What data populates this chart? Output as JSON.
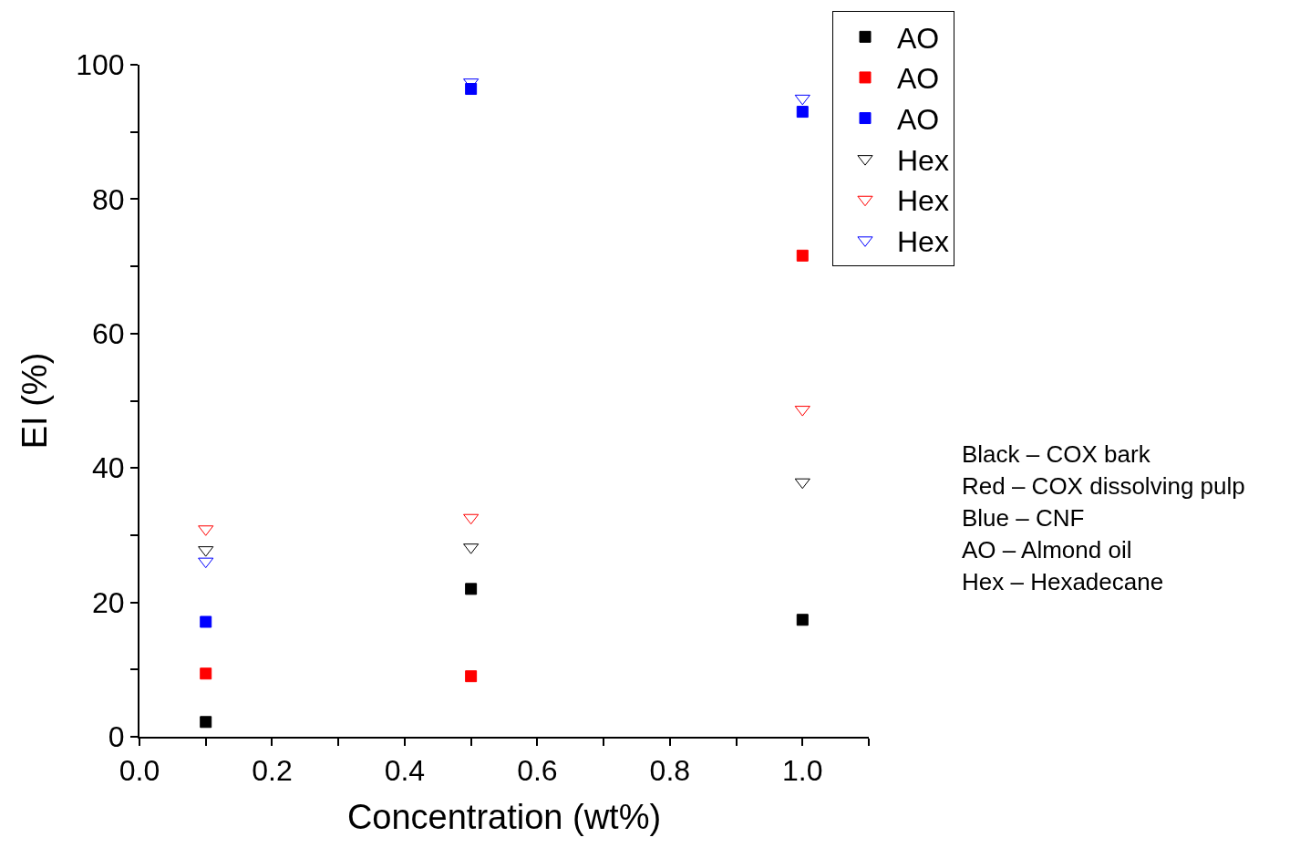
{
  "chart_data": {
    "type": "scatter",
    "xlabel": "Concentration (wt%)",
    "ylabel": "EI (%)",
    "x": [
      0.1,
      0.5,
      1.0
    ],
    "series": [
      {
        "name": "AO",
        "color": "#000000",
        "marker": "square",
        "values": [
          2.2,
          22.0,
          17.4
        ]
      },
      {
        "name": "AO",
        "color": "#ff0000",
        "marker": "square",
        "values": [
          9.4,
          9.0,
          71.6
        ]
      },
      {
        "name": "AO",
        "color": "#0000ff",
        "marker": "square",
        "values": [
          17.1,
          96.4,
          93.0
        ]
      },
      {
        "name": "Hex",
        "color": "#000000",
        "marker": "triangle",
        "values": [
          27.8,
          28.2,
          37.9
        ]
      },
      {
        "name": "Hex",
        "color": "#ff0000",
        "marker": "triangle",
        "values": [
          30.9,
          32.6,
          48.7
        ]
      },
      {
        "name": "Hex",
        "color": "#0000ff",
        "marker": "triangle",
        "values": [
          26.1,
          97.4,
          95.0
        ]
      }
    ],
    "xlim": [
      0,
      1.1
    ],
    "xticks": [
      {
        "value": 0,
        "label": "0.0"
      },
      {
        "value": 0.1,
        "label": null
      },
      {
        "value": 0.2,
        "label": "0.2"
      },
      {
        "value": 0.3,
        "label": null
      },
      {
        "value": 0.4,
        "label": "0.4"
      },
      {
        "value": 0.5,
        "label": null
      },
      {
        "value": 0.6,
        "label": "0.6"
      },
      {
        "value": 0.7,
        "label": null
      },
      {
        "value": 0.8,
        "label": "0.8"
      },
      {
        "value": 0.9,
        "label": null
      },
      {
        "value": 1.0,
        "label": "1.0"
      },
      {
        "value": 1.1,
        "label": null
      }
    ],
    "ylim": [
      0,
      100
    ],
    "yticks": [
      0,
      {
        "value": 10,
        "label": null
      },
      20,
      {
        "value": 30,
        "label": null
      },
      40,
      {
        "value": 50,
        "label": null
      },
      60,
      {
        "value": 70,
        "label": null
      },
      80,
      {
        "value": 90,
        "label": null
      },
      100
    ],
    "annotations": [
      "Black – COX bark",
      "Red – COX dissolving pulp",
      "Blue – CNF",
      "AO – Almond oil",
      "Hex – Hexadecane"
    ],
    "legend": "top right",
    "grid": false
  }
}
